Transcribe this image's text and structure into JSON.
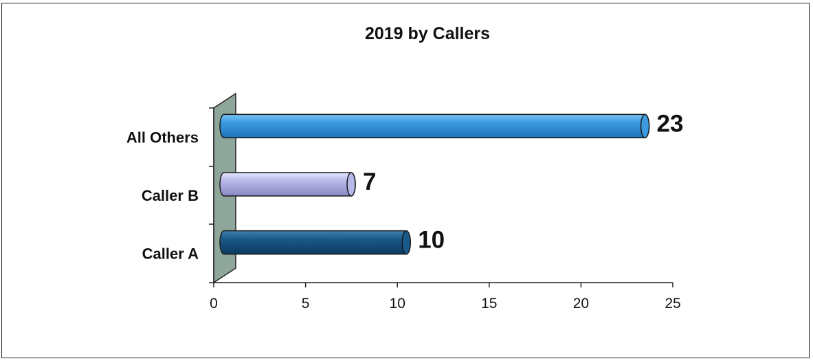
{
  "chart_data": {
    "type": "bar",
    "orientation": "horizontal",
    "title": "2019 by Callers",
    "categories": [
      "Caller A",
      "Caller B",
      "All Others"
    ],
    "values": [
      10,
      7,
      23
    ],
    "xlim": [
      0,
      25
    ],
    "x_ticks": [
      "0",
      "5",
      "10",
      "15",
      "20",
      "25"
    ],
    "data_labels": [
      "10",
      "7",
      "23"
    ],
    "colors": [
      "#1a5a8a",
      "#b8b8ea",
      "#3a9be0"
    ],
    "wall_color": "#8fa79a",
    "grid": false,
    "legend": "none"
  }
}
